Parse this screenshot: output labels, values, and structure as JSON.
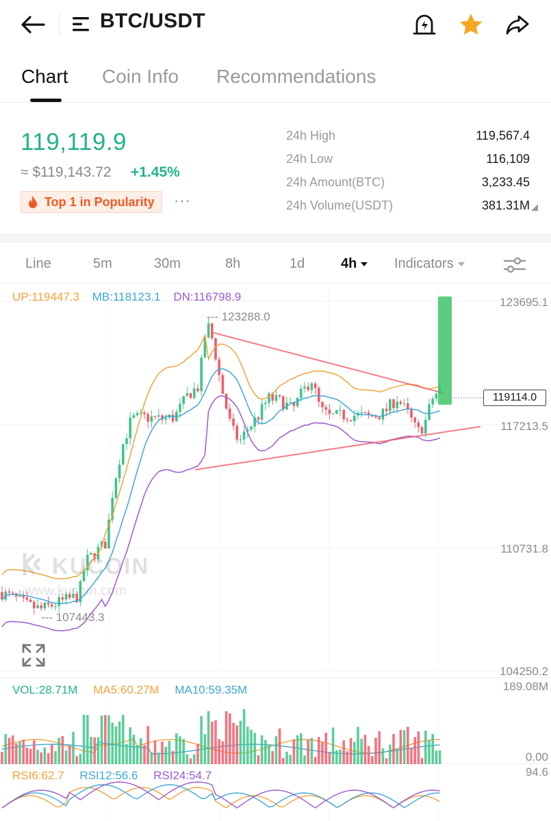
{
  "header": {
    "pair": "BTC/USDT",
    "icons": [
      "back-arrow-icon",
      "list-menu-icon",
      "price-alert-icon",
      "favorite-star-icon",
      "share-icon"
    ],
    "star_color": "#f5a623"
  },
  "tabs": [
    {
      "label": "Chart",
      "active": true
    },
    {
      "label": "Coin Info",
      "active": false
    },
    {
      "label": "Recommendations",
      "active": false
    }
  ],
  "ticker": {
    "last_price": "119,119.9",
    "usd_price": "≈ $119,143.72",
    "change_pct": "+1.45%",
    "badge": "Top 1 in Popularity",
    "more": "···",
    "up_color": "#21b38a",
    "down_color": "#f25c6a"
  },
  "stats": [
    {
      "label": "24h High",
      "value": "119,567.4"
    },
    {
      "label": "24h Low",
      "value": "116,109"
    },
    {
      "label": "24h Amount(BTC)",
      "value": "3,233.45"
    },
    {
      "label": "24h Volume(USDT)",
      "value": "381.31M"
    }
  ],
  "intervals": {
    "items": [
      "Line",
      "5m",
      "30m",
      "8h",
      "1d",
      "4h",
      "Indicators"
    ],
    "active": "4h"
  },
  "chart_data": {
    "type": "candlestick",
    "boll": {
      "up": "UP:119447.3",
      "mb": "MB:118123.1",
      "dn": "DN:116798.9"
    },
    "y_axis_labels": [
      "123695.1",
      "117213.5",
      "110731.8",
      "104250.2"
    ],
    "ylim": [
      104250.2,
      123695.1
    ],
    "current_price": "119114.0",
    "high_marker": "--- 123288.0",
    "low_marker": "--- 107443.3",
    "high_value": 123288.0,
    "low_value": 107443.3,
    "watermark": {
      "brand": "KUCOIN",
      "url": "www.kucoin.com"
    },
    "volume": {
      "vol": "VOL:28.71M",
      "ma5": "MA5:60.27M",
      "ma10": "MA10:59.35M",
      "axis_top": "189.08M",
      "axis_bottom": "0.00"
    },
    "rsi": {
      "rsi6": "RSI6:62.7",
      "rsi12": "RSI12:56.6",
      "rsi24": "RSI24:54.7",
      "axis_top": "94.6"
    },
    "trendlines": "converging triangle (red), upper resistance and lower support",
    "colors": {
      "up": "#3fc48a",
      "down": "#f25c6a",
      "boll_up": "#f2a33b",
      "boll_mb": "#3fa7d6",
      "boll_dn": "#9b59d0"
    }
  }
}
